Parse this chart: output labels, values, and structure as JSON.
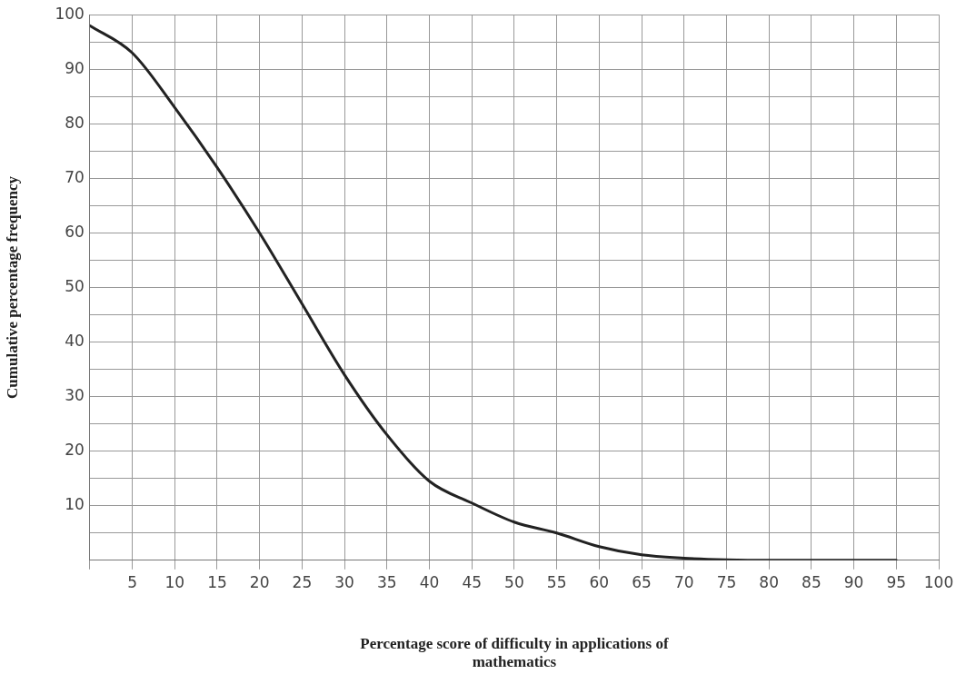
{
  "chart_data": {
    "type": "line",
    "xlabel": "Percentage score of difficulty in applications of mathematics",
    "ylabel": "Cumulative percentage frequency",
    "x": [
      0,
      5,
      10,
      15,
      20,
      25,
      30,
      35,
      40,
      45,
      50,
      55,
      60,
      65,
      70,
      75,
      80,
      85,
      90,
      95
    ],
    "series": [
      {
        "color": "#222222",
        "values": [
          98,
          93,
          83,
          72,
          60,
          47,
          34,
          23,
          14.5,
          10.5,
          7,
          5,
          2.5,
          1,
          0.4,
          0.1,
          0,
          0,
          0,
          0
        ]
      }
    ],
    "xlim": [
      0,
      100
    ],
    "ylim": [
      0,
      100
    ],
    "xticks": [
      {
        "value": 0,
        "label": null
      },
      5,
      10,
      15,
      20,
      25,
      30,
      35,
      40,
      45,
      50,
      55,
      60,
      65,
      70,
      75,
      80,
      85,
      90,
      95,
      100
    ],
    "yticks": [
      {
        "value": 0,
        "label": null
      },
      {
        "value": 5,
        "label": null
      },
      10,
      {
        "value": 15,
        "label": null
      },
      20,
      {
        "value": 25,
        "label": null
      },
      30,
      {
        "value": 35,
        "label": null
      },
      40,
      {
        "value": 45,
        "label": null
      },
      50,
      {
        "value": 55,
        "label": null
      },
      60,
      {
        "value": 65,
        "label": null
      },
      70,
      {
        "value": 75,
        "label": null
      },
      80,
      {
        "value": 85,
        "label": null
      },
      90,
      {
        "value": 95,
        "label": null
      },
      100
    ],
    "grid": true,
    "legend": false,
    "marker": "none",
    "line_style": "solid"
  }
}
